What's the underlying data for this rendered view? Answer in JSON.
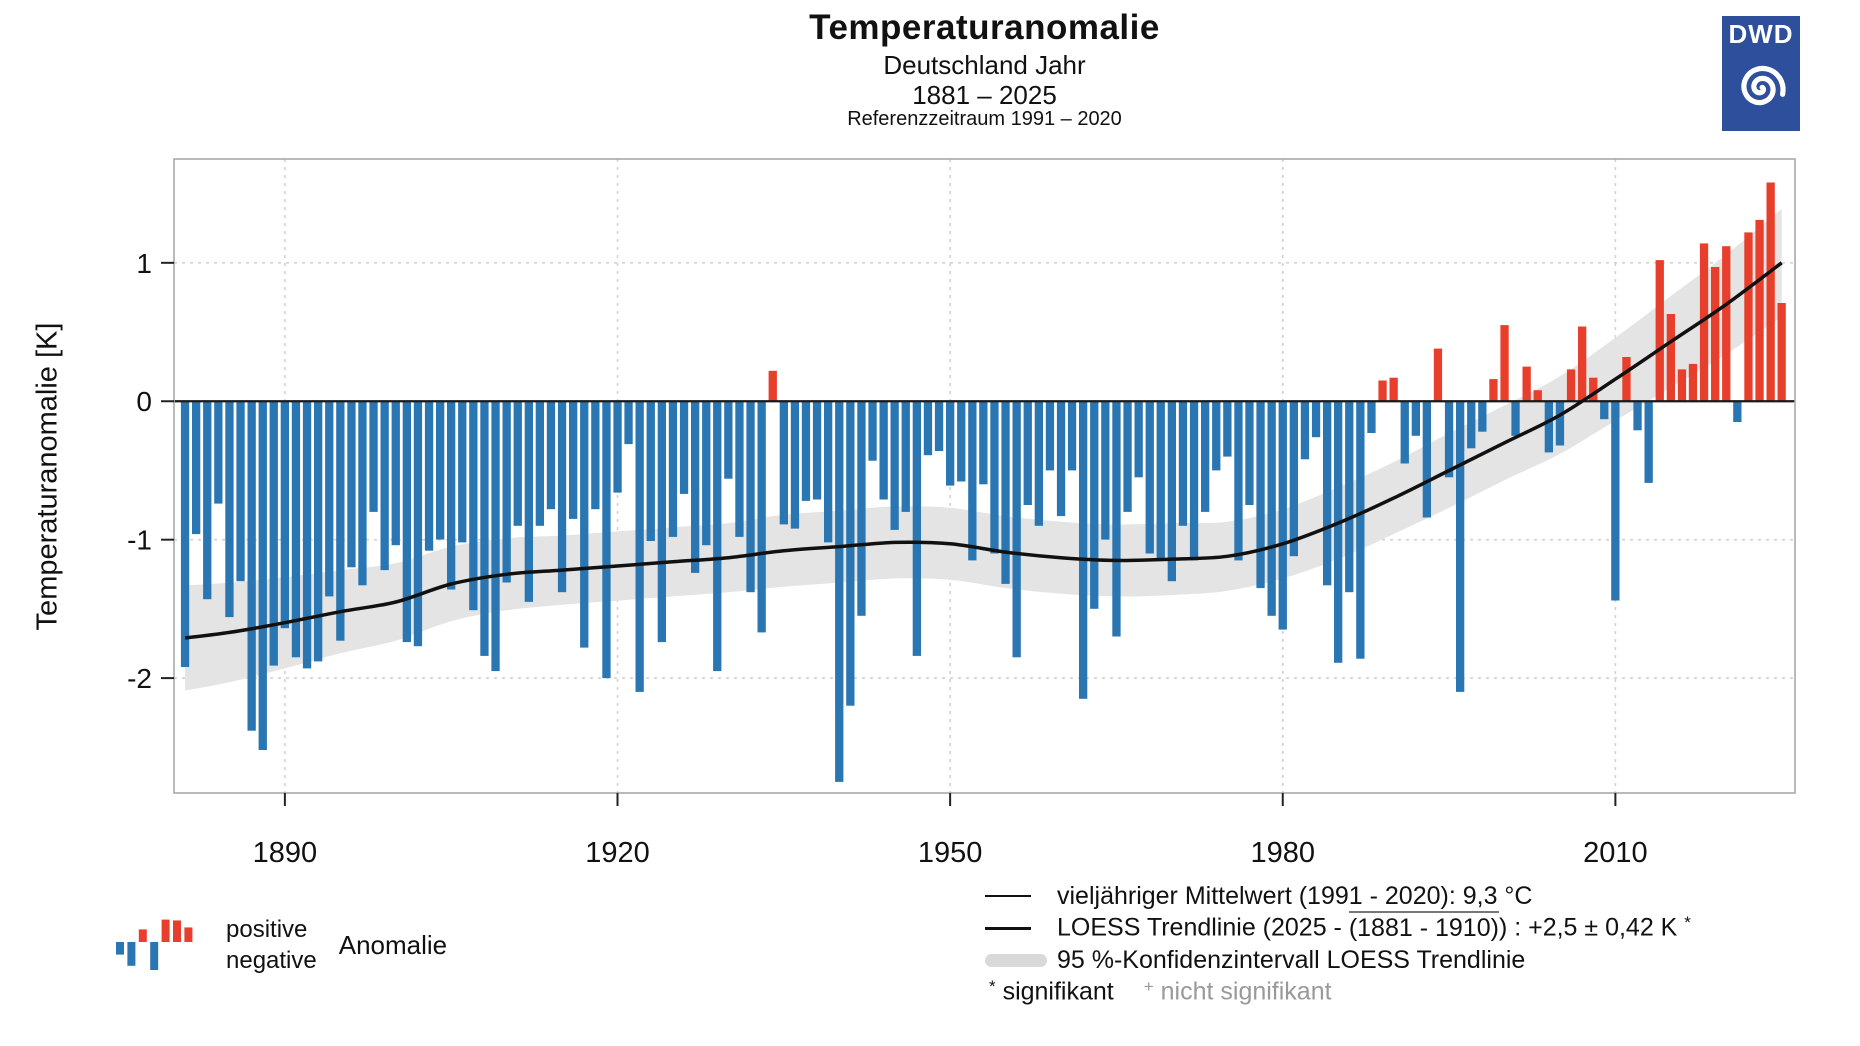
{
  "header": {
    "title": "Temperaturanomalie",
    "subtitle_region": "Deutschland Jahr",
    "subtitle_period": "1881 – 2025",
    "subtitle_reference": "Referenzzeitraum 1991 – 2020"
  },
  "logo": {
    "text": "DWD",
    "color": "#2d4f9c"
  },
  "colors": {
    "positive_bar": "#e83f2c",
    "negative_bar": "#2a76b3",
    "trend_line": "#111111",
    "confidence_band": "#e4e4e4",
    "zero_line": "#1a1a1a",
    "gridline": "#d2d2d2",
    "plot_border": "#a9a9a9",
    "muted_text": "#999999"
  },
  "legend_left": {
    "positive": "positive",
    "negative": "negative",
    "anomalie": "Anomalie",
    "icon_values": [
      -0.45,
      -0.85,
      0.45,
      -1.0,
      0.8,
      0.77,
      0.52
    ]
  },
  "legend_right": {
    "mean_label": "vieljähriger Mittelwert (1991 - 2020): 9,3 °C",
    "trend_prefix": "LOESS Trendlinie (2025 - ",
    "trend_overline": "(1881 - 1910)",
    "trend_suffix": ") :  +2,5 ± 0,42 K",
    "trend_star": "*",
    "ci_label": "95 %-Konfidenzintervall LOESS Trendlinie",
    "sig_star": "*",
    "sig_label": " signifikant",
    "nsig_plus": "+",
    "nsig_label": " nicht signifikant"
  },
  "chart_data": {
    "type": "bar",
    "title": "Temperaturanomalie Deutschland Jahr 1881–2025, Referenzzeitraum 1991–2020",
    "xlabel": "",
    "ylabel": "Temperaturanomalie [K]",
    "year_start": 1881,
    "year_end": 2025,
    "xlim": [
      1880.0,
      2026.2
    ],
    "ylim": [
      -2.83,
      1.75
    ],
    "grid": "dashed",
    "xaxis": {
      "tick_years": [
        1890,
        1920,
        1950,
        1980,
        2010
      ],
      "tick_labels": [
        "1890",
        "1920",
        "1950",
        "1980",
        "2010"
      ]
    },
    "yaxis": {
      "tick_values": [
        1,
        0,
        -1,
        -2
      ],
      "tick_labels": [
        "1",
        "0",
        "-1",
        "-2"
      ]
    },
    "values": [
      -1.92,
      -0.96,
      -1.43,
      -0.74,
      -1.56,
      -1.3,
      -2.38,
      -2.52,
      -1.91,
      -1.64,
      -1.85,
      -1.93,
      -1.88,
      -1.41,
      -1.73,
      -1.2,
      -1.33,
      -0.8,
      -1.22,
      -1.04,
      -1.74,
      -1.77,
      -1.08,
      -1.0,
      -1.36,
      -1.02,
      -1.51,
      -1.84,
      -1.95,
      -1.31,
      -0.9,
      -1.45,
      -0.9,
      -0.78,
      -1.38,
      -0.85,
      -1.78,
      -0.78,
      -2.0,
      -0.66,
      -0.31,
      -2.1,
      -1.01,
      -1.74,
      -0.98,
      -0.67,
      -1.24,
      -1.04,
      -1.95,
      -0.56,
      -0.98,
      -1.38,
      -1.67,
      0.22,
      -0.89,
      -0.92,
      -0.72,
      -0.71,
      -1.02,
      -2.75,
      -2.2,
      -1.55,
      -0.43,
      -0.71,
      -0.93,
      -0.8,
      -1.84,
      -0.39,
      -0.36,
      -0.61,
      -0.58,
      -1.15,
      -0.6,
      -1.1,
      -1.32,
      -1.85,
      -0.75,
      -0.9,
      -0.5,
      -0.83,
      -0.5,
      -2.15,
      -1.5,
      -1.0,
      -1.7,
      -0.8,
      -0.55,
      -1.1,
      -1.15,
      -1.3,
      -0.9,
      -1.15,
      -0.8,
      -0.5,
      -0.4,
      -1.15,
      -0.75,
      -1.35,
      -1.55,
      -1.65,
      -1.12,
      -0.42,
      -0.26,
      -1.33,
      -1.89,
      -1.38,
      -1.86,
      -0.23,
      0.15,
      0.17,
      -0.45,
      -0.25,
      -0.84,
      0.38,
      -0.55,
      -2.1,
      -0.34,
      -0.22,
      0.16,
      0.55,
      -0.25,
      0.25,
      0.08,
      -0.37,
      -0.32,
      0.23,
      0.54,
      0.17,
      -0.13,
      -1.44,
      0.32,
      -0.21,
      -0.59,
      1.02,
      0.63,
      0.23,
      0.27,
      1.14,
      0.97,
      1.12,
      -0.15,
      1.22,
      1.31,
      1.58,
      0.71
    ],
    "trend": {
      "name": "LOESS Trendlinie",
      "years": [
        1881,
        1885,
        1890,
        1895,
        1900,
        1905,
        1910,
        1915,
        1920,
        1925,
        1930,
        1935,
        1940,
        1945,
        1950,
        1955,
        1960,
        1965,
        1970,
        1975,
        1980,
        1985,
        1990,
        1995,
        2000,
        2005,
        2010,
        2015,
        2020,
        2025
      ],
      "values": [
        -1.71,
        -1.67,
        -1.6,
        -1.52,
        -1.45,
        -1.32,
        -1.25,
        -1.22,
        -1.19,
        -1.16,
        -1.13,
        -1.08,
        -1.05,
        -1.02,
        -1.03,
        -1.09,
        -1.13,
        -1.15,
        -1.14,
        -1.12,
        -1.03,
        -0.88,
        -0.7,
        -0.5,
        -0.3,
        -0.1,
        0.16,
        0.43,
        0.7,
        1.0
      ],
      "band_halfwidth": [
        0.38,
        0.36,
        0.33,
        0.3,
        0.28,
        0.27,
        0.26,
        0.25,
        0.25,
        0.25,
        0.25,
        0.26,
        0.26,
        0.26,
        0.26,
        0.26,
        0.26,
        0.26,
        0.26,
        0.25,
        0.25,
        0.26,
        0.26,
        0.27,
        0.27,
        0.28,
        0.3,
        0.33,
        0.36,
        0.39
      ],
      "trend_value_label": "+2,5 ± 0,42 K",
      "mean_value_label": "9,3 °C"
    },
    "legend_position": "bottom"
  }
}
